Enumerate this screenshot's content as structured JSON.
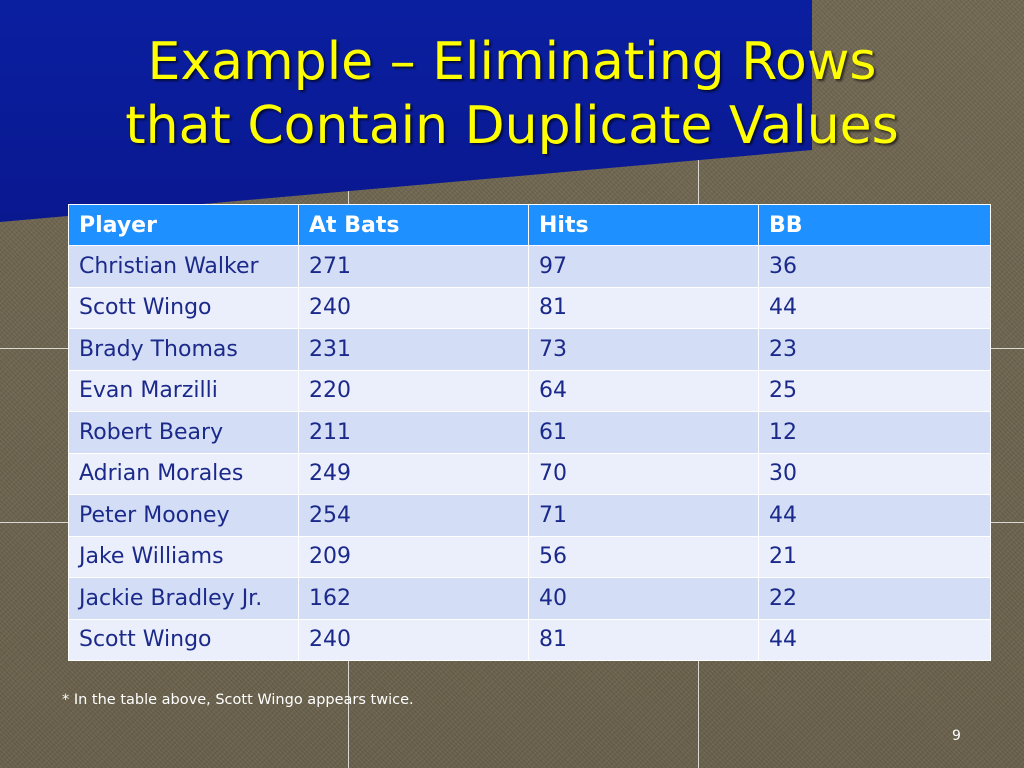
{
  "slide": {
    "title_line1": "Example – Eliminating Rows",
    "title_line2": "that Contain Duplicate Values",
    "footnote": "* In the table above, Scott Wingo appears twice.",
    "page_number": "9"
  },
  "table": {
    "headers": [
      "Player",
      "At Bats",
      "Hits",
      "BB"
    ],
    "rows": [
      [
        "Christian Walker",
        "271",
        "97",
        "36"
      ],
      [
        "Scott Wingo",
        "240",
        "81",
        "44"
      ],
      [
        "Brady Thomas",
        "231",
        "73",
        "23"
      ],
      [
        "Evan Marzilli",
        "220",
        "64",
        "25"
      ],
      [
        "Robert Beary",
        "211",
        "61",
        "12"
      ],
      [
        "Adrian Morales",
        "249",
        "70",
        "30"
      ],
      [
        "Peter Mooney",
        "254",
        "71",
        "44"
      ],
      [
        "Jake Williams",
        "209",
        "56",
        "21"
      ],
      [
        "Jackie Bradley Jr.",
        "162",
        "40",
        "22"
      ],
      [
        "Scott Wingo",
        "240",
        "81",
        "44"
      ]
    ]
  },
  "colors": {
    "title_background": "#0a1fa0",
    "title_text": "#ffff00",
    "header_background": "#1e90ff",
    "row_odd": "#d3ddf5",
    "row_even": "#ebeffb",
    "cell_text": "#1b2a8a"
  }
}
